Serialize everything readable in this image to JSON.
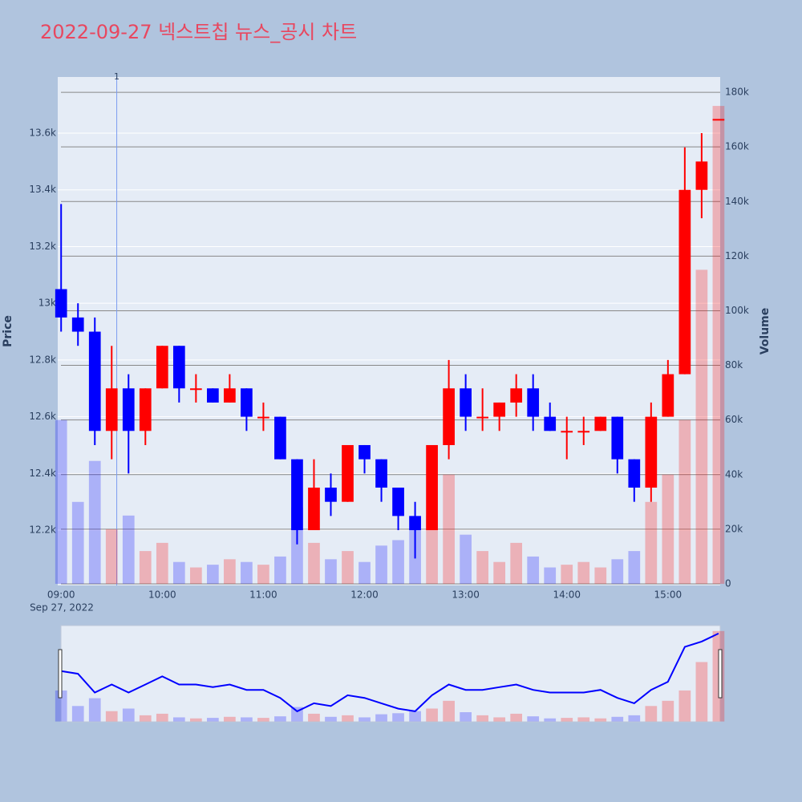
{
  "chart_data": {
    "type": "candlestick",
    "title": "2022-09-27 넥스트칩 뉴스_공시 차트",
    "y_title": "Price",
    "y2_title": "Volume",
    "x_date_label": "Sep 27, 2022",
    "annotation": {
      "x": "09:33",
      "text": "1"
    },
    "increasing_color": "#ff0000",
    "decreasing_color": "#0000ff",
    "x": [
      "09:00",
      "09:10",
      "09:20",
      "09:30",
      "09:40",
      "09:50",
      "10:00",
      "10:10",
      "10:20",
      "10:30",
      "10:40",
      "10:50",
      "11:00",
      "11:10",
      "11:20",
      "11:30",
      "11:40",
      "11:50",
      "12:00",
      "12:10",
      "12:20",
      "12:30",
      "12:40",
      "12:50",
      "13:00",
      "13:10",
      "13:20",
      "13:30",
      "13:40",
      "13:50",
      "14:00",
      "14:10",
      "14:20",
      "14:30",
      "14:40",
      "14:50",
      "15:00",
      "15:10",
      "15:20",
      "15:30"
    ],
    "open": [
      13050,
      12950,
      12900,
      12550,
      12700,
      12550,
      12700,
      12850,
      12700,
      12700,
      12650,
      12700,
      12600,
      12600,
      12450,
      12200,
      12350,
      12300,
      12500,
      12450,
      12350,
      12250,
      12200,
      12500,
      12700,
      12600,
      12600,
      12650,
      12700,
      12600,
      12550,
      12550,
      12550,
      12600,
      12450,
      12350,
      12600,
      12750,
      13400,
      13650
    ],
    "high": [
      13350,
      13000,
      12950,
      12850,
      12750,
      12700,
      12850,
      12850,
      12750,
      12700,
      12750,
      12700,
      12650,
      12600,
      12450,
      12450,
      12400,
      12500,
      12500,
      12450,
      12350,
      12300,
      12500,
      12800,
      12750,
      12700,
      12650,
      12750,
      12750,
      12650,
      12600,
      12600,
      12600,
      12600,
      12450,
      12650,
      12800,
      13550,
      13600,
      13650
    ],
    "low": [
      12900,
      12850,
      12500,
      12450,
      12400,
      12500,
      12700,
      12650,
      12650,
      12650,
      12650,
      12550,
      12550,
      12450,
      12150,
      12200,
      12250,
      12300,
      12400,
      12300,
      12200,
      12100,
      12200,
      12450,
      12550,
      12550,
      12550,
      12600,
      12550,
      12550,
      12450,
      12500,
      12550,
      12400,
      12300,
      12300,
      12600,
      12750,
      13300,
      13650
    ],
    "close": [
      12950,
      12900,
      12550,
      12700,
      12550,
      12700,
      12850,
      12700,
      12700,
      12650,
      12700,
      12600,
      12600,
      12450,
      12200,
      12350,
      12300,
      12500,
      12450,
      12350,
      12250,
      12200,
      12500,
      12700,
      12600,
      12600,
      12650,
      12700,
      12600,
      12550,
      12550,
      12550,
      12600,
      12450,
      12350,
      12600,
      12750,
      13400,
      13500,
      13650
    ],
    "volume": [
      60000,
      30000,
      45000,
      20000,
      25000,
      12000,
      15000,
      8000,
      6000,
      7000,
      9000,
      8000,
      7000,
      10000,
      28000,
      15000,
      9000,
      12000,
      8000,
      14000,
      16000,
      20000,
      25000,
      40000,
      18000,
      12000,
      8000,
      15000,
      10000,
      6000,
      7000,
      8000,
      6000,
      9000,
      12000,
      30000,
      40000,
      60000,
      115000,
      175000
    ],
    "xlim": [
      "08:58",
      "15:31"
    ],
    "xticks": [
      "09:00",
      "10:00",
      "11:00",
      "12:00",
      "13:00",
      "14:00",
      "15:00"
    ],
    "ylim": [
      12005,
      13798
    ],
    "yticks": [
      {
        "value": 12200,
        "label": "12.2k"
      },
      {
        "value": 12400,
        "label": "12.4k"
      },
      {
        "value": 12600,
        "label": "12.6k"
      },
      {
        "value": 12800,
        "label": "12.8k"
      },
      {
        "value": 13000,
        "label": "13k"
      },
      {
        "value": 13200,
        "label": "13.2k"
      },
      {
        "value": 13400,
        "label": "13.4k"
      },
      {
        "value": 13600,
        "label": "13.6k"
      }
    ],
    "y2lim": [
      -600,
      185600
    ],
    "y2ticks": [
      0,
      {
        "value": 20000,
        "label": "20k"
      },
      {
        "value": 40000,
        "label": "40k"
      },
      {
        "value": 60000,
        "label": "60k"
      },
      {
        "value": 80000,
        "label": "80k"
      },
      {
        "value": 100000,
        "label": "100k"
      },
      {
        "value": 120000,
        "label": "120k"
      },
      {
        "value": 140000,
        "label": "140k"
      },
      {
        "value": 160000,
        "label": "160k"
      },
      {
        "value": 180000,
        "label": "180k"
      }
    ]
  }
}
